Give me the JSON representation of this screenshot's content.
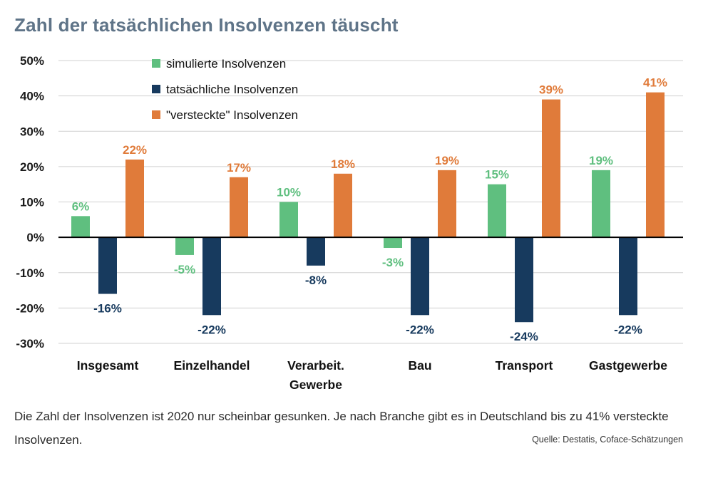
{
  "title": "Zahl der tatsächlichen Insolvenzen täuscht",
  "caption": "Die Zahl der Insolvenzen ist 2020 nur scheinbar gesunken. Je nach Branche gibt es in Deutschland bis zu 41% versteckte Insolvenzen.",
  "source": "Quelle: Destatis, Coface-Schätzungen",
  "chart_data": {
    "type": "bar",
    "title": "Zahl der tatsächlichen Insolvenzen täuscht",
    "xlabel": "",
    "ylabel": "",
    "ylim": [
      -30,
      50
    ],
    "yticks": [
      50,
      40,
      30,
      20,
      10,
      0,
      -10,
      -20,
      -30
    ],
    "ytick_labels": [
      "50%",
      "40%",
      "30%",
      "20%",
      "10%",
      "0%",
      "-10%",
      "-20%",
      "-30%"
    ],
    "grid": true,
    "legend_position": "top-left",
    "categories": [
      "Insgesamt",
      "Einzelhandel",
      "Verarbeit.\nGewerbe",
      "Bau",
      "Transport",
      "Gastgewerbe"
    ],
    "series": [
      {
        "name": "simulierte Insolvenzen",
        "color": "#5fbf7f",
        "values": [
          6,
          -5,
          10,
          -3,
          15,
          19
        ],
        "labels": [
          "6%",
          "-5%",
          "10%",
          "-3%",
          "15%",
          "19%"
        ]
      },
      {
        "name": "tatsächliche Insolvenzen",
        "color": "#173a5e",
        "values": [
          -16,
          -22,
          -8,
          -22,
          -24,
          -22
        ],
        "labels": [
          "-16%",
          "-22%",
          "-8%",
          "-22%",
          "-24%",
          "-22%"
        ]
      },
      {
        "name": "\"versteckte\" Insolvenzen",
        "color": "#e07b3a",
        "values": [
          22,
          17,
          18,
          19,
          39,
          41
        ],
        "labels": [
          "22%",
          "17%",
          "18%",
          "19%",
          "39%",
          "41%"
        ]
      }
    ]
  }
}
